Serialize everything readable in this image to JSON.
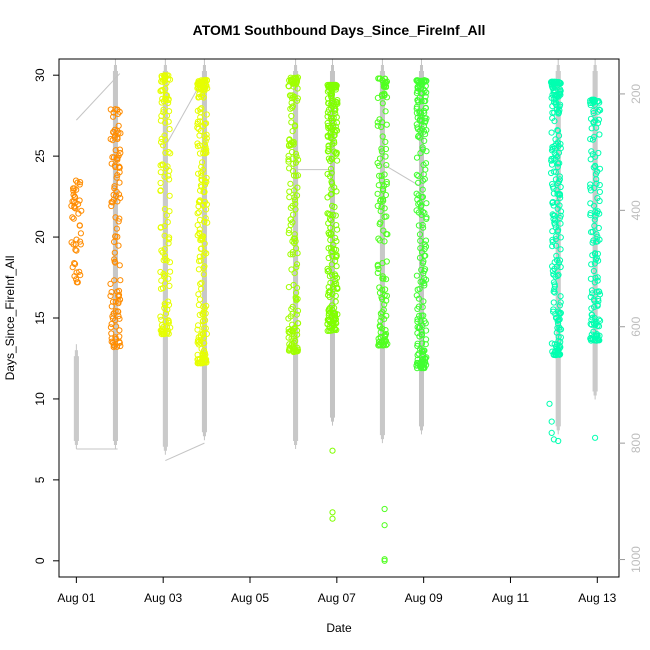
{
  "chart_data": {
    "type": "scatter",
    "title": "ATOM1 Southbound Days_Since_FireInf_All",
    "xlabel": "Date",
    "ylabel": "Days_Since_FireInf_All",
    "x_ticks": [
      "Aug 01",
      "Aug 03",
      "Aug 05",
      "Aug 07",
      "Aug 09",
      "Aug 11",
      "Aug 13"
    ],
    "xlim_days": [
      0.6,
      13.5
    ],
    "ylim": [
      -1,
      31
    ],
    "y_ticks": [
      0,
      5,
      10,
      15,
      20,
      25,
      30
    ],
    "y2_ticks": [
      200,
      400,
      600,
      800,
      1000
    ],
    "y2lim": [
      1030,
      140
    ],
    "y2_inverted": true,
    "point_marker": "open-circle",
    "colors": [
      "#FF8C00",
      "#FFC800",
      "#E6FF00",
      "#B4FF00",
      "#64FF00",
      "#30FF30",
      "#00FFB0",
      "#00FFC8"
    ],
    "depth_line_color": "#c4c4c4",
    "clusters": [
      {
        "day": 1.0,
        "count": 45,
        "ymin": 17.2,
        "ymax": 23.5,
        "color": "#FF8C00"
      },
      {
        "day": 1.9,
        "count": 110,
        "ymin": 13.2,
        "ymax": 27.9,
        "color": "#FF8C00"
      },
      {
        "day": 3.05,
        "count": 120,
        "ymin": 14.0,
        "ymax": 30.0,
        "color": "#E6FF00"
      },
      {
        "day": 3.9,
        "count": 200,
        "ymin": 12.2,
        "ymax": 29.7,
        "color": "#E6FF00"
      },
      {
        "day": 6.0,
        "count": 160,
        "ymin": 12.9,
        "ymax": 29.9,
        "color": "#A0FF00"
      },
      {
        "day": 6.9,
        "count": 220,
        "ymin": 14.2,
        "ymax": 29.4,
        "color": "#80FF00"
      },
      {
        "day": 8.05,
        "count": 130,
        "ymin": 13.3,
        "ymax": 29.8,
        "color": "#50FF20"
      },
      {
        "day": 8.95,
        "count": 200,
        "ymin": 11.9,
        "ymax": 29.7,
        "color": "#40FF30"
      },
      {
        "day": 12.05,
        "count": 220,
        "ymin": 12.7,
        "ymax": 29.6,
        "color": "#00FFB0"
      },
      {
        "day": 12.95,
        "count": 140,
        "ymin": 13.6,
        "ymax": 28.5,
        "color": "#00FFB0"
      }
    ],
    "outliers": [
      {
        "day": 6.9,
        "y": 6.8,
        "color": "#80FF00"
      },
      {
        "day": 6.9,
        "y": 3.0,
        "color": "#80FF00"
      },
      {
        "day": 6.9,
        "y": 2.6,
        "color": "#80FF00"
      },
      {
        "day": 8.1,
        "y": 3.2,
        "color": "#50FF20"
      },
      {
        "day": 8.1,
        "y": 2.2,
        "color": "#50FF20"
      },
      {
        "day": 8.1,
        "y": 0.1,
        "color": "#50FF20"
      },
      {
        "day": 8.1,
        "y": 0.0,
        "color": "#50FF20"
      },
      {
        "day": 11.9,
        "y": 9.7,
        "color": "#00FFB0"
      },
      {
        "day": 11.95,
        "y": 8.6,
        "color": "#00FFB0"
      },
      {
        "day": 11.95,
        "y": 7.9,
        "color": "#00FFB0"
      },
      {
        "day": 12.0,
        "y": 7.5,
        "color": "#00FFB0"
      },
      {
        "day": 12.1,
        "y": 7.4,
        "color": "#00FFB0"
      },
      {
        "day": 12.95,
        "y": 7.6,
        "color": "#00FFB0"
      }
    ],
    "depth_profiles": [
      {
        "day": 1.0,
        "depth_min": 630,
        "depth_max": 810
      },
      {
        "day": 1.9,
        "depth_min": 140,
        "depth_max": 810
      },
      {
        "day": 3.05,
        "depth_min": 140,
        "depth_max": 820
      },
      {
        "day": 3.95,
        "depth_min": 140,
        "depth_max": 795
      },
      {
        "day": 6.05,
        "depth_min": 140,
        "depth_max": 810
      },
      {
        "day": 6.9,
        "depth_min": 140,
        "depth_max": 770
      },
      {
        "day": 8.05,
        "depth_min": 140,
        "depth_max": 800
      },
      {
        "day": 8.95,
        "depth_min": 140,
        "depth_max": 785
      },
      {
        "day": 12.1,
        "depth_min": 140,
        "depth_max": 785
      },
      {
        "day": 12.95,
        "depth_min": 140,
        "depth_max": 725
      }
    ],
    "transit_lines": [
      [
        [
          1.0,
          810
        ],
        [
          1.95,
          810
        ]
      ],
      [
        [
          1.0,
          245
        ],
        [
          2.0,
          165
        ]
      ],
      [
        [
          3.05,
          830
        ],
        [
          3.95,
          800
        ]
      ],
      [
        [
          3.05,
          290
        ],
        [
          3.95,
          170
        ]
      ],
      [
        [
          6.05,
          330
        ],
        [
          6.9,
          330
        ]
      ],
      [
        [
          8.05,
          320
        ],
        [
          8.95,
          360
        ]
      ]
    ]
  }
}
